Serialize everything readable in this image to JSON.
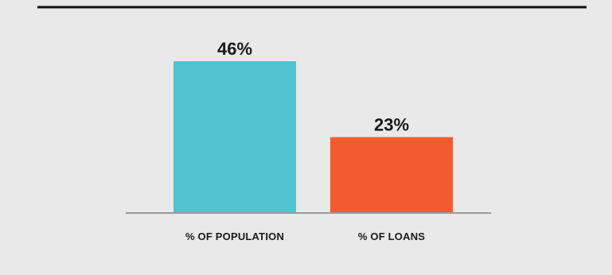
{
  "chart_data": {
    "type": "bar",
    "categories": [
      "% OF POPULATION",
      "% OF LOANS"
    ],
    "values": [
      46,
      23
    ],
    "value_labels": [
      "46%",
      "23%"
    ],
    "colors": [
      "#4fc4d0",
      "#f25a2f"
    ],
    "title": "",
    "xlabel": "",
    "ylabel": "",
    "ylim": [
      0,
      46
    ],
    "grid": false,
    "legend": "none"
  },
  "colors": {
    "background": "#e9e9e9",
    "top_rule": "#111111",
    "baseline": "#9a9a9a"
  }
}
